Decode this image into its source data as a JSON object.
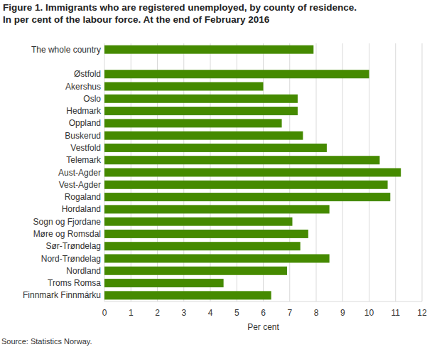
{
  "chart_data": {
    "type": "bar",
    "orientation": "horizontal",
    "title": [
      "Figure 1. Immigrants who are registered unemployed, by county of residence.",
      "In per cent of the labour force. At the end of February 2016"
    ],
    "x_label": "Per cent",
    "source": "Source: Statistics Norway.",
    "categories": [
      "The whole country",
      null,
      "Østfold",
      "Akershus",
      "Oslo",
      "Hedmark",
      "Oppland",
      "Buskerud",
      "Vestfold",
      "Telemark",
      "Aust-Agder",
      "Vest-Agder",
      "Rogaland",
      "Hordaland",
      "Sogn og Fjordane",
      "Møre og Romsdal",
      "Sør-Trøndelag",
      "Nord-Trøndelag",
      "Nordland",
      "Troms Romsa",
      "Finnmark Finnmárku"
    ],
    "values": [
      7.9,
      null,
      10.0,
      6.0,
      7.3,
      7.3,
      6.7,
      7.5,
      8.4,
      10.4,
      11.2,
      10.7,
      10.8,
      8.5,
      7.1,
      7.7,
      7.4,
      8.5,
      6.9,
      4.5,
      6.3
    ],
    "color": "#458a00",
    "xlim": [
      0,
      12
    ],
    "xticks": [
      0,
      1,
      2,
      3,
      4,
      5,
      6,
      7,
      8,
      9,
      10,
      11,
      12
    ],
    "grid": true
  }
}
